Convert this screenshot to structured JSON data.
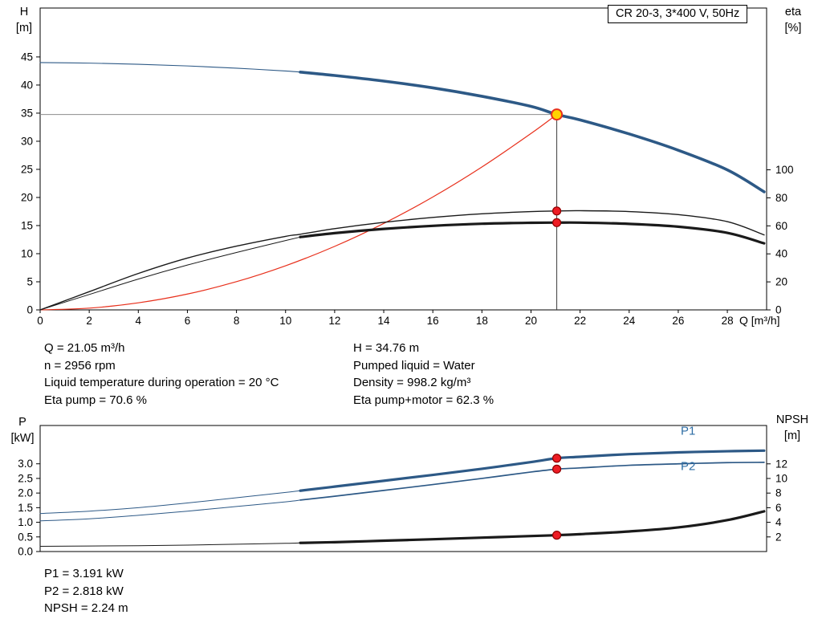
{
  "header": {
    "title": "CR 20-3, 3*400 V, 50Hz"
  },
  "chart_data": [
    {
      "type": "line",
      "name": "qh-eta-curves",
      "x_label": "Q [m³/h]",
      "x_range": [
        0,
        29.6
      ],
      "x_ticks": [
        0,
        2,
        4,
        6,
        8,
        10,
        12,
        14,
        16,
        18,
        20,
        22,
        24,
        26,
        28
      ],
      "left_axis": {
        "label": "H",
        "unit": "[m]",
        "ticks": [
          0,
          5,
          10,
          15,
          20,
          25,
          30,
          35,
          40,
          45
        ],
        "range": [
          0,
          53.7
        ]
      },
      "right_axis": {
        "label": "eta",
        "unit": "[%]",
        "ticks": [
          0,
          20,
          40,
          60,
          80,
          100
        ],
        "range": [
          0,
          215.5
        ]
      },
      "crosshair": {
        "q": 21.05,
        "h": 34.76
      },
      "series": [
        {
          "name": "head",
          "axis": "left",
          "color": "#2d5986",
          "thin_until": 10.6,
          "thin_width": 1.1,
          "width": 3.6,
          "points": [
            [
              0,
              44.0
            ],
            [
              2,
              43.9
            ],
            [
              4,
              43.7
            ],
            [
              6,
              43.4
            ],
            [
              8,
              43.0
            ],
            [
              10,
              42.5
            ],
            [
              10.6,
              42.3
            ],
            [
              12,
              41.7
            ],
            [
              14,
              40.7
            ],
            [
              16,
              39.5
            ],
            [
              18,
              38.0
            ],
            [
              20,
              36.2
            ],
            [
              21.05,
              34.76
            ],
            [
              22,
              33.8
            ],
            [
              24,
              31.3
            ],
            [
              26,
              28.4
            ],
            [
              28,
              24.9
            ],
            [
              29.5,
              21.0
            ]
          ]
        },
        {
          "name": "system-curve",
          "axis": "left",
          "color": "#e8301c",
          "width": 1.2,
          "points": [
            [
              0,
              0
            ],
            [
              2,
              0.31
            ],
            [
              4,
              1.26
            ],
            [
              6,
              2.82
            ],
            [
              8,
              5.02
            ],
            [
              10,
              7.85
            ],
            [
              12,
              11.3
            ],
            [
              14,
              15.38
            ],
            [
              16,
              20.08
            ],
            [
              18,
              25.42
            ],
            [
              20,
              31.38
            ],
            [
              21.05,
              34.76
            ]
          ]
        },
        {
          "name": "eta-pump",
          "axis": "right",
          "color": "#1a1a1a",
          "width": 1.4,
          "points": [
            [
              0,
              0
            ],
            [
              2,
              13
            ],
            [
              4,
              26
            ],
            [
              6,
              37
            ],
            [
              8,
              45.5
            ],
            [
              10,
              52.5
            ],
            [
              10.6,
              54
            ],
            [
              12,
              58
            ],
            [
              14,
              62.5
            ],
            [
              16,
              66
            ],
            [
              18,
              68.6
            ],
            [
              20,
              70.2
            ],
            [
              21.05,
              70.6
            ],
            [
              22,
              70.8
            ],
            [
              24,
              70.2
            ],
            [
              26,
              68
            ],
            [
              28,
              63
            ],
            [
              29.5,
              53.5
            ]
          ]
        },
        {
          "name": "eta-pump-motor",
          "axis": "right",
          "color": "#1a1a1a",
          "thin_until": 10.6,
          "thin_width": 1.0,
          "width": 3.2,
          "points": [
            [
              0,
              0
            ],
            [
              2,
              11
            ],
            [
              4,
              22
            ],
            [
              6,
              32
            ],
            [
              8,
              41
            ],
            [
              10,
              49.5
            ],
            [
              10.6,
              52
            ],
            [
              12,
              54.8
            ],
            [
              14,
              57.8
            ],
            [
              16,
              60.0
            ],
            [
              18,
              61.5
            ],
            [
              20,
              62.2
            ],
            [
              21.05,
              62.3
            ],
            [
              22,
              62.3
            ],
            [
              24,
              61.4
            ],
            [
              26,
              59.4
            ],
            [
              28,
              55.0
            ],
            [
              29.5,
              47.5
            ]
          ]
        }
      ],
      "markers": [
        {
          "name": "duty-point-marker",
          "x": 21.05,
          "y": 34.76,
          "axis": "left",
          "fill": "#ffd400",
          "stroke": "#e8301c",
          "r": 6.5,
          "stroke_width": 2,
          "interactable": true
        },
        {
          "name": "eta-pump-marker",
          "x": 21.05,
          "y": 70.6,
          "axis": "right",
          "fill": "#ed1c24",
          "stroke": "#8f0000",
          "r": 5,
          "stroke_width": 1.2,
          "interactable": false
        },
        {
          "name": "eta-pump-motor-marker",
          "x": 21.05,
          "y": 62.3,
          "axis": "right",
          "fill": "#ed1c24",
          "stroke": "#8f0000",
          "r": 5,
          "stroke_width": 1.2,
          "interactable": false
        }
      ]
    },
    {
      "type": "line",
      "name": "power-npsh-curves",
      "x_label": "",
      "x_range": [
        0,
        29.6
      ],
      "x_ticks": [],
      "left_axis": {
        "label": "P",
        "unit": "[kW]",
        "ticks": [
          0,
          0.5,
          1,
          1.5,
          2,
          2.5,
          3
        ],
        "decimals": 1,
        "range": [
          0,
          4.31
        ]
      },
      "right_axis": {
        "label": "NPSH",
        "unit": "[m]",
        "ticks": [
          2,
          4,
          6,
          8,
          10,
          12
        ],
        "range": [
          0,
          17.25
        ]
      },
      "series": [
        {
          "name": "p1",
          "axis": "left",
          "color": "#2d5986",
          "thin_until": 10.6,
          "thin_width": 1.0,
          "width": 3.2,
          "points": [
            [
              0,
              1.3
            ],
            [
              2,
              1.38
            ],
            [
              4,
              1.5
            ],
            [
              6,
              1.66
            ],
            [
              8,
              1.84
            ],
            [
              10,
              2.02
            ],
            [
              10.6,
              2.08
            ],
            [
              12,
              2.22
            ],
            [
              14,
              2.42
            ],
            [
              16,
              2.62
            ],
            [
              18,
              2.83
            ],
            [
              20,
              3.06
            ],
            [
              21.05,
              3.191
            ],
            [
              22,
              3.24
            ],
            [
              24,
              3.33
            ],
            [
              26,
              3.39
            ],
            [
              28,
              3.43
            ],
            [
              29.5,
              3.45
            ]
          ]
        },
        {
          "name": "p2",
          "axis": "left",
          "color": "#2d5986",
          "thin_until": 10.6,
          "thin_width": 1.0,
          "width": 1.7,
          "points": [
            [
              0,
              1.05
            ],
            [
              2,
              1.12
            ],
            [
              4,
              1.24
            ],
            [
              6,
              1.38
            ],
            [
              8,
              1.54
            ],
            [
              10,
              1.7
            ],
            [
              10.6,
              1.76
            ],
            [
              12,
              1.89
            ],
            [
              14,
              2.09
            ],
            [
              16,
              2.29
            ],
            [
              18,
              2.5
            ],
            [
              20,
              2.72
            ],
            [
              21.05,
              2.818
            ],
            [
              22,
              2.86
            ],
            [
              24,
              2.95
            ],
            [
              26,
              3.0
            ],
            [
              28,
              3.04
            ],
            [
              29.5,
              3.05
            ]
          ]
        },
        {
          "name": "npsh",
          "axis": "right",
          "color": "#1a1a1a",
          "thin_until": 10.6,
          "thin_width": 1.0,
          "width": 3.2,
          "points": [
            [
              0,
              0.72
            ],
            [
              2,
              0.75
            ],
            [
              4,
              0.8
            ],
            [
              6,
              0.88
            ],
            [
              8,
              1.0
            ],
            [
              10,
              1.12
            ],
            [
              10.6,
              1.18
            ],
            [
              12,
              1.28
            ],
            [
              14,
              1.48
            ],
            [
              16,
              1.68
            ],
            [
              18,
              1.9
            ],
            [
              20,
              2.12
            ],
            [
              21.05,
              2.24
            ],
            [
              22,
              2.38
            ],
            [
              24,
              2.75
            ],
            [
              26,
              3.3
            ],
            [
              28,
              4.3
            ],
            [
              29.5,
              5.5
            ]
          ]
        }
      ],
      "markers": [
        {
          "name": "p1-marker",
          "x": 21.05,
          "y": 3.191,
          "axis": "left",
          "fill": "#ed1c24",
          "stroke": "#8f0000",
          "r": 5,
          "stroke_width": 1.2,
          "interactable": false
        },
        {
          "name": "p2-marker",
          "x": 21.05,
          "y": 2.818,
          "axis": "left",
          "fill": "#ed1c24",
          "stroke": "#8f0000",
          "r": 5,
          "stroke_width": 1.2,
          "interactable": false
        },
        {
          "name": "npsh-marker",
          "x": 21.05,
          "y": 2.24,
          "axis": "right",
          "fill": "#ed1c24",
          "stroke": "#8f0000",
          "r": 5,
          "stroke_width": 1.2,
          "interactable": false
        }
      ],
      "series_labels": [
        {
          "text": "P1",
          "x": 26.4,
          "y": 4.0,
          "axis": "left",
          "color": "#2e6da4"
        },
        {
          "text": "P2",
          "x": 26.4,
          "y": 2.78,
          "axis": "left",
          "color": "#2e6da4"
        }
      ]
    }
  ],
  "results_top": {
    "left": [
      "Q = 21.05 m³/h",
      "n = 2956 rpm",
      "Liquid temperature during operation = 20 °C",
      "Eta pump = 70.6 %"
    ],
    "right": [
      "H = 34.76 m",
      "Pumped liquid = Water",
      "Density = 998.2 kg/m³",
      "Eta pump+motor = 62.3 %"
    ]
  },
  "results_bottom": [
    "P1 = 3.191 kW",
    "P2 = 2.818 kW",
    "NPSH = 2.24 m"
  ]
}
